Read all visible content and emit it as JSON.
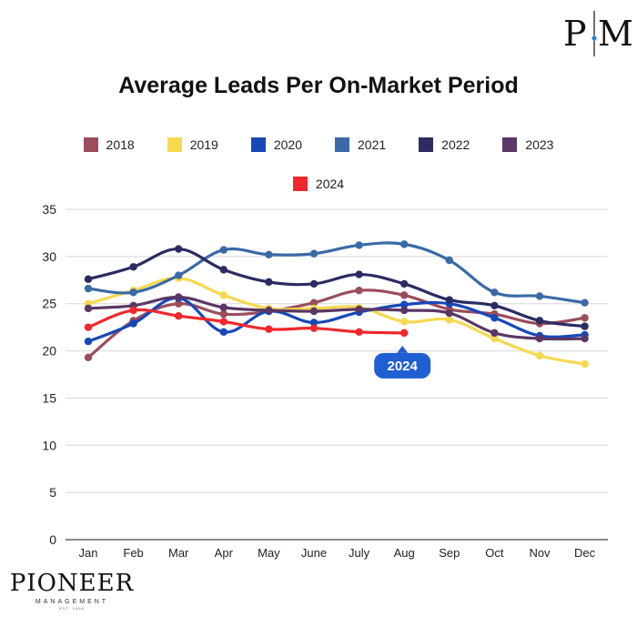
{
  "brand": {
    "monogram_left": "P",
    "monogram_right": "M",
    "name": "PIONEER",
    "subtitle": "MANAGEMENT",
    "tagline": "EST. 1998"
  },
  "chart_data": {
    "type": "line",
    "title": "Average Leads Per On-Market Period",
    "categories": [
      "Jan",
      "Feb",
      "Mar",
      "Apr",
      "May",
      "June",
      "July",
      "Aug",
      "Sep",
      "Oct",
      "Nov",
      "Dec"
    ],
    "ylim": [
      0,
      35
    ],
    "yticks": [
      0,
      5,
      10,
      15,
      20,
      25,
      30,
      35
    ],
    "grid": true,
    "legend_position": "top",
    "series": [
      {
        "name": "2018",
        "color": "#9b4d5c",
        "values": [
          19.3,
          23.2,
          25.0,
          23.9,
          24.2,
          25.1,
          26.4,
          25.9,
          24.4,
          23.9,
          22.9,
          23.5
        ]
      },
      {
        "name": "2019",
        "color": "#f6d94f",
        "values": [
          25.0,
          26.4,
          27.7,
          25.9,
          24.5,
          24.5,
          24.6,
          23.1,
          23.3,
          21.3,
          19.5,
          18.6
        ]
      },
      {
        "name": "2020",
        "color": "#1648b8",
        "values": [
          21.0,
          22.9,
          25.6,
          22.0,
          24.2,
          23.0,
          24.1,
          24.9,
          25.0,
          23.5,
          21.6,
          21.7
        ]
      },
      {
        "name": "2021",
        "color": "#3a6aa6",
        "values": [
          26.6,
          26.2,
          28.0,
          30.7,
          30.2,
          30.3,
          31.2,
          31.3,
          29.6,
          26.2,
          25.8,
          25.1
        ]
      },
      {
        "name": "2022",
        "color": "#2c2c63",
        "values": [
          27.6,
          28.9,
          30.8,
          28.6,
          27.3,
          27.1,
          28.1,
          27.1,
          25.4,
          24.8,
          23.2,
          22.6
        ]
      },
      {
        "name": "2023",
        "color": "#5a3766",
        "values": [
          24.5,
          24.8,
          25.7,
          24.6,
          24.3,
          24.2,
          24.4,
          24.3,
          24.0,
          21.9,
          21.3,
          21.3
        ]
      },
      {
        "name": "2024",
        "color": "#f0282d",
        "values": [
          22.5,
          24.3,
          23.7,
          23.1,
          22.3,
          22.4,
          22.0,
          21.9,
          null,
          null,
          null,
          null
        ]
      }
    ],
    "annotations": [
      {
        "text": "2024",
        "series": "2024",
        "category": "Aug",
        "color": "#1f5fd1"
      }
    ]
  }
}
